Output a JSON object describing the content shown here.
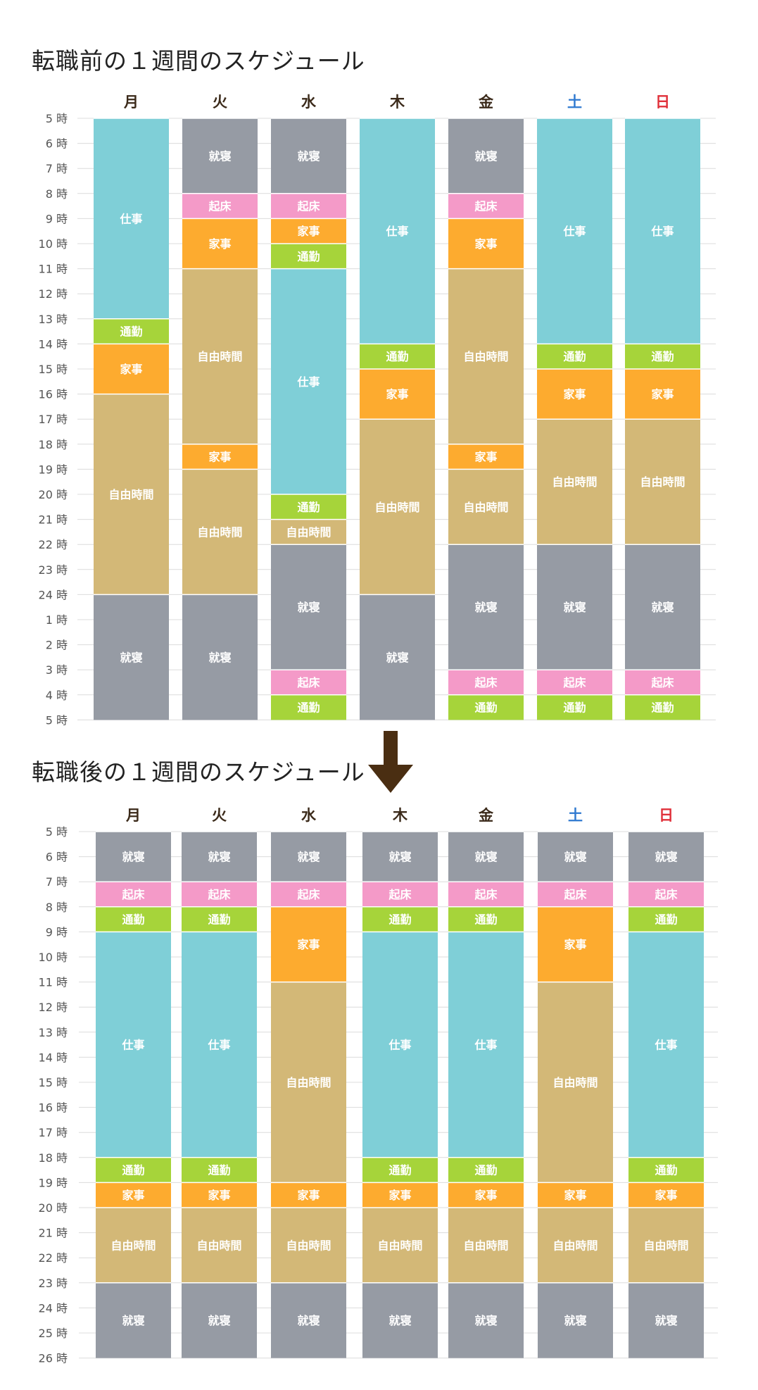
{
  "colors": {
    "起床": "#f49ac8",
    "家事": "#fdab2f",
    "通勤": "#a6d43a",
    "仕事": "#7fcfd7",
    "自由時間": "#d3b877",
    "就寝": "#969ba4"
  },
  "day_colors": {
    "weekday": "#3b2a1a",
    "土": "#2f79d0",
    "日": "#e0303a"
  },
  "chart_data": [
    {
      "type": "stacked-bar",
      "title": "転職前の１週間のスケジュール",
      "categories": [
        "月",
        "火",
        "水",
        "木",
        "金",
        "土",
        "日"
      ],
      "y_ticks": [
        "5 時",
        "6 時",
        "7 時",
        "8 時",
        "9 時",
        "10 時",
        "11 時",
        "12 時",
        "13 時",
        "14 時",
        "15 時",
        "16 時",
        "17 時",
        "18 時",
        "19 時",
        "20 時",
        "21 時",
        "22 時",
        "23 時",
        "24 時",
        "1 時",
        "2 時",
        "3 時",
        "4 時",
        "5 時"
      ],
      "ylim": [
        5,
        29
      ],
      "days": [
        [
          {
            "label": "仕事",
            "start": 5,
            "end": 13
          },
          {
            "label": "通勤",
            "start": 13,
            "end": 14
          },
          {
            "label": "家事",
            "start": 14,
            "end": 16
          },
          {
            "label": "自由時間",
            "start": 16,
            "end": 24
          },
          {
            "label": "就寝",
            "start": 24,
            "end": 29
          }
        ],
        [
          {
            "label": "就寝",
            "start": 5,
            "end": 8
          },
          {
            "label": "起床",
            "start": 8,
            "end": 9
          },
          {
            "label": "家事",
            "start": 9,
            "end": 11
          },
          {
            "label": "自由時間",
            "start": 11,
            "end": 18
          },
          {
            "label": "家事",
            "start": 18,
            "end": 19
          },
          {
            "label": "自由時間",
            "start": 19,
            "end": 24
          },
          {
            "label": "就寝",
            "start": 24,
            "end": 29
          }
        ],
        [
          {
            "label": "就寝",
            "start": 5,
            "end": 8
          },
          {
            "label": "起床",
            "start": 8,
            "end": 9
          },
          {
            "label": "家事",
            "start": 9,
            "end": 10
          },
          {
            "label": "通勤",
            "start": 10,
            "end": 11
          },
          {
            "label": "仕事",
            "start": 11,
            "end": 20
          },
          {
            "label": "通勤",
            "start": 20,
            "end": 21
          },
          {
            "label": "自由時間",
            "start": 21,
            "end": 22
          },
          {
            "label": "就寝",
            "start": 22,
            "end": 27
          },
          {
            "label": "起床",
            "start": 27,
            "end": 28
          },
          {
            "label": "通勤",
            "start": 28,
            "end": 29
          }
        ],
        [
          {
            "label": "仕事",
            "start": 5,
            "end": 14
          },
          {
            "label": "通勤",
            "start": 14,
            "end": 15
          },
          {
            "label": "家事",
            "start": 15,
            "end": 17
          },
          {
            "label": "自由時間",
            "start": 17,
            "end": 24
          },
          {
            "label": "就寝",
            "start": 24,
            "end": 29
          }
        ],
        [
          {
            "label": "就寝",
            "start": 5,
            "end": 8
          },
          {
            "label": "起床",
            "start": 8,
            "end": 9
          },
          {
            "label": "家事",
            "start": 9,
            "end": 11
          },
          {
            "label": "自由時間",
            "start": 11,
            "end": 18
          },
          {
            "label": "家事",
            "start": 18,
            "end": 19
          },
          {
            "label": "自由時間",
            "start": 19,
            "end": 22
          },
          {
            "label": "就寝",
            "start": 22,
            "end": 27
          },
          {
            "label": "起床",
            "start": 27,
            "end": 28
          },
          {
            "label": "通勤",
            "start": 28,
            "end": 29
          }
        ],
        [
          {
            "label": "仕事",
            "start": 5,
            "end": 14
          },
          {
            "label": "通勤",
            "start": 14,
            "end": 15
          },
          {
            "label": "家事",
            "start": 15,
            "end": 17
          },
          {
            "label": "自由時間",
            "start": 17,
            "end": 22
          },
          {
            "label": "就寝",
            "start": 22,
            "end": 27
          },
          {
            "label": "起床",
            "start": 27,
            "end": 28
          },
          {
            "label": "通勤",
            "start": 28,
            "end": 29
          }
        ],
        [
          {
            "label": "仕事",
            "start": 5,
            "end": 14
          },
          {
            "label": "通勤",
            "start": 14,
            "end": 15
          },
          {
            "label": "家事",
            "start": 15,
            "end": 17
          },
          {
            "label": "自由時間",
            "start": 17,
            "end": 22
          },
          {
            "label": "就寝",
            "start": 22,
            "end": 27
          },
          {
            "label": "起床",
            "start": 27,
            "end": 28
          },
          {
            "label": "通勤",
            "start": 28,
            "end": 29
          }
        ]
      ]
    },
    {
      "type": "stacked-bar",
      "title": "転職後の１週間のスケジュール",
      "categories": [
        "月",
        "火",
        "水",
        "木",
        "金",
        "土",
        "日"
      ],
      "y_ticks": [
        "5 時",
        "6 時",
        "7 時",
        "8 時",
        "9 時",
        "10 時",
        "11 時",
        "12 時",
        "13 時",
        "14 時",
        "15 時",
        "16 時",
        "17 時",
        "18 時",
        "19 時",
        "20 時",
        "21 時",
        "22 時",
        "23 時",
        "24 時",
        "25 時",
        "26 時"
      ],
      "ylim": [
        5,
        26
      ],
      "days": [
        [
          {
            "label": "就寝",
            "start": 5,
            "end": 7
          },
          {
            "label": "起床",
            "start": 7,
            "end": 8
          },
          {
            "label": "通勤",
            "start": 8,
            "end": 9
          },
          {
            "label": "仕事",
            "start": 9,
            "end": 18
          },
          {
            "label": "通勤",
            "start": 18,
            "end": 19
          },
          {
            "label": "家事",
            "start": 19,
            "end": 20
          },
          {
            "label": "自由時間",
            "start": 20,
            "end": 23
          },
          {
            "label": "就寝",
            "start": 23,
            "end": 26
          }
        ],
        [
          {
            "label": "就寝",
            "start": 5,
            "end": 7
          },
          {
            "label": "起床",
            "start": 7,
            "end": 8
          },
          {
            "label": "通勤",
            "start": 8,
            "end": 9
          },
          {
            "label": "仕事",
            "start": 9,
            "end": 18
          },
          {
            "label": "通勤",
            "start": 18,
            "end": 19
          },
          {
            "label": "家事",
            "start": 19,
            "end": 20
          },
          {
            "label": "自由時間",
            "start": 20,
            "end": 23
          },
          {
            "label": "就寝",
            "start": 23,
            "end": 26
          }
        ],
        [
          {
            "label": "就寝",
            "start": 5,
            "end": 7
          },
          {
            "label": "起床",
            "start": 7,
            "end": 8
          },
          {
            "label": "家事",
            "start": 8,
            "end": 11
          },
          {
            "label": "自由時間",
            "start": 11,
            "end": 19
          },
          {
            "label": "家事",
            "start": 19,
            "end": 20
          },
          {
            "label": "自由時間",
            "start": 20,
            "end": 23
          },
          {
            "label": "就寝",
            "start": 23,
            "end": 26
          }
        ],
        [
          {
            "label": "就寝",
            "start": 5,
            "end": 7
          },
          {
            "label": "起床",
            "start": 7,
            "end": 8
          },
          {
            "label": "通勤",
            "start": 8,
            "end": 9
          },
          {
            "label": "仕事",
            "start": 9,
            "end": 18
          },
          {
            "label": "通勤",
            "start": 18,
            "end": 19
          },
          {
            "label": "家事",
            "start": 19,
            "end": 20
          },
          {
            "label": "自由時間",
            "start": 20,
            "end": 23
          },
          {
            "label": "就寝",
            "start": 23,
            "end": 26
          }
        ],
        [
          {
            "label": "就寝",
            "start": 5,
            "end": 7
          },
          {
            "label": "起床",
            "start": 7,
            "end": 8
          },
          {
            "label": "通勤",
            "start": 8,
            "end": 9
          },
          {
            "label": "仕事",
            "start": 9,
            "end": 18
          },
          {
            "label": "通勤",
            "start": 18,
            "end": 19
          },
          {
            "label": "家事",
            "start": 19,
            "end": 20
          },
          {
            "label": "自由時間",
            "start": 20,
            "end": 23
          },
          {
            "label": "就寝",
            "start": 23,
            "end": 26
          }
        ],
        [
          {
            "label": "就寝",
            "start": 5,
            "end": 7
          },
          {
            "label": "起床",
            "start": 7,
            "end": 8
          },
          {
            "label": "家事",
            "start": 8,
            "end": 11
          },
          {
            "label": "自由時間",
            "start": 11,
            "end": 19
          },
          {
            "label": "家事",
            "start": 19,
            "end": 20
          },
          {
            "label": "自由時間",
            "start": 20,
            "end": 23
          },
          {
            "label": "就寝",
            "start": 23,
            "end": 26
          }
        ],
        [
          {
            "label": "就寝",
            "start": 5,
            "end": 7
          },
          {
            "label": "起床",
            "start": 7,
            "end": 8
          },
          {
            "label": "通勤",
            "start": 8,
            "end": 9
          },
          {
            "label": "仕事",
            "start": 9,
            "end": 18
          },
          {
            "label": "通勤",
            "start": 18,
            "end": 19
          },
          {
            "label": "家事",
            "start": 19,
            "end": 20
          },
          {
            "label": "自由時間",
            "start": 20,
            "end": 23
          },
          {
            "label": "就寝",
            "start": 23,
            "end": 26
          }
        ]
      ]
    }
  ]
}
